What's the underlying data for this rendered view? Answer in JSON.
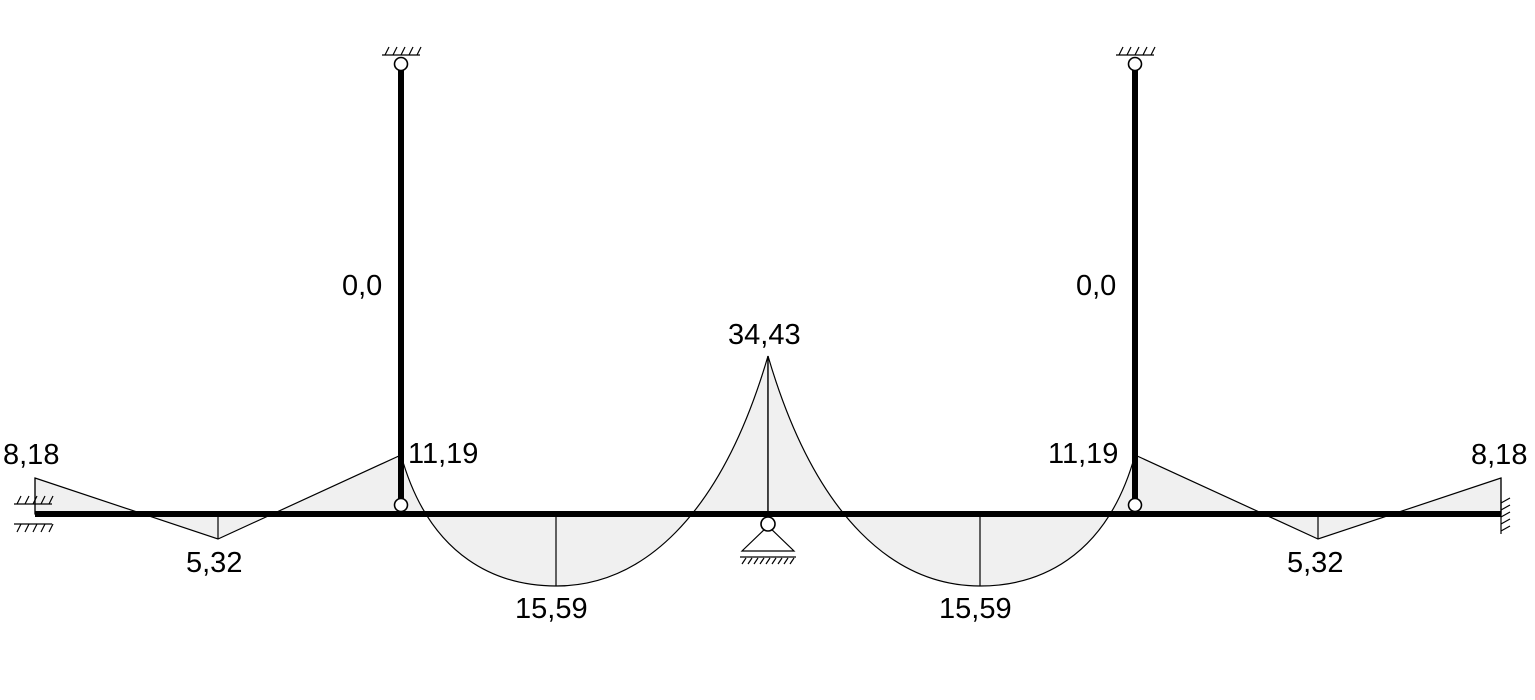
{
  "labels": {
    "left_column_top": "0,0",
    "right_column_top": "0,0",
    "left_end": "8,18",
    "right_end": "8,18",
    "left_span1_mid": "5,32",
    "right_span1_mid": "5,32",
    "left_joint": "11,19",
    "right_joint": "11,19",
    "left_span2_mid": "15,59",
    "right_span2_mid": "15,59",
    "center_support": "34,43"
  },
  "colors": {
    "line": "#000000",
    "diagram_fill": "#f0f0f0",
    "background": "#ffffff"
  }
}
